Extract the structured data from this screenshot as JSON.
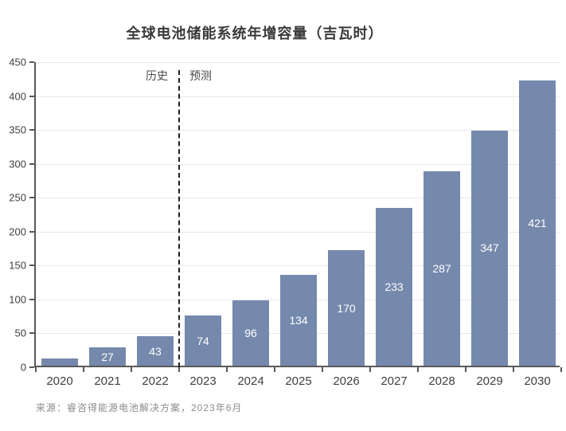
{
  "title": "全球电池储能系统年增容量（吉瓦时）",
  "annotations": {
    "history": "历史",
    "forecast": "预测"
  },
  "source_line": "来源：睿咨得能源电池解决方案，2023年6月",
  "chart_data": {
    "type": "bar",
    "title": "全球电池储能系统年增容量（吉瓦时）",
    "unit": "吉瓦时",
    "categories": [
      "2020",
      "2021",
      "2022",
      "2023",
      "2024",
      "2025",
      "2026",
      "2027",
      "2028",
      "2029",
      "2030"
    ],
    "values": [
      11,
      27,
      43,
      74,
      96,
      134,
      170,
      233,
      287,
      347,
      421
    ],
    "bar_labels": [
      "",
      "27",
      "43",
      "74",
      "96",
      "134",
      "170",
      "233",
      "287",
      "347",
      "421"
    ],
    "xlabel": "",
    "ylabel": "",
    "ylim": [
      0,
      450
    ],
    "yticks": [
      0,
      50,
      100,
      150,
      200,
      250,
      300,
      350,
      400,
      450
    ],
    "grid": true,
    "legend": null,
    "divider_before_index": 3,
    "divider_labels": {
      "left": "历史",
      "right": "预测"
    },
    "colors": {
      "bar": "#7589AD",
      "bar_label_text": "#FFFFFF",
      "axis": "#595959",
      "gridline": "#E8E8E8",
      "divider": "#1F1F1F",
      "title_text": "#3A3A3A",
      "tick_text": "#404040",
      "source_text": "#8C8C8C",
      "background": "#FFFFFF"
    }
  }
}
